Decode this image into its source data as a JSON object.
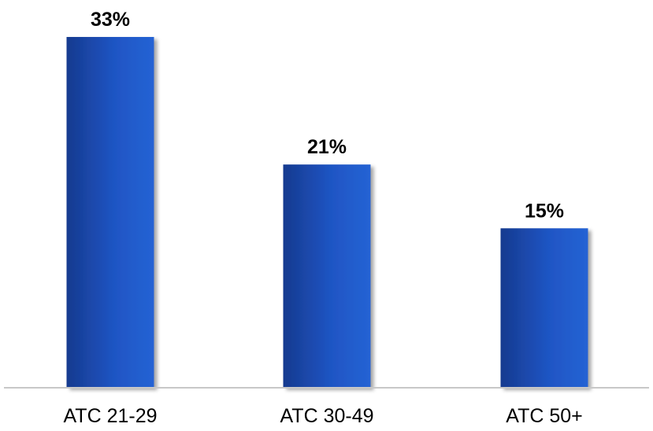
{
  "chart_data": {
    "type": "bar",
    "categories": [
      "ATC 21-29",
      "ATC 30-49",
      "ATC 50+"
    ],
    "values": [
      33,
      21,
      15
    ],
    "data_labels": [
      "33%",
      "21%",
      "15%"
    ],
    "title": "",
    "xlabel": "",
    "ylabel": "",
    "ylim": [
      0,
      33
    ],
    "grid": false,
    "legend": "none",
    "bar_color_dark": "#163a8f",
    "bar_color_light": "#2563d4",
    "axis_color": "#c8c8c8"
  }
}
